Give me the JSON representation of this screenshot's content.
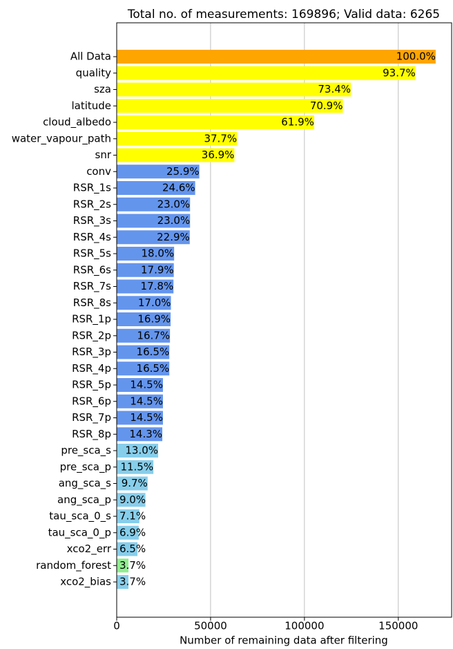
{
  "chart_data": {
    "type": "barh",
    "title": "Total no. of measurements: 169896; Valid data: 6265",
    "x_label": "Number of remaining data after filtering",
    "categories": [
      "All Data",
      "quality",
      "sza",
      "latitude",
      "cloud_albedo",
      "water_vapour_path",
      "snr",
      "conv",
      "RSR_1s",
      "RSR_2s",
      "RSR_3s",
      "RSR_4s",
      "RSR_5s",
      "RSR_6s",
      "RSR_7s",
      "RSR_8s",
      "RSR_1p",
      "RSR_2p",
      "RSR_3p",
      "RSR_4p",
      "RSR_5p",
      "RSR_6p",
      "RSR_7p",
      "RSR_8p",
      "pre_sca_s",
      "pre_sca_p",
      "ang_sca_s",
      "ang_sca_p",
      "tau_sca_0_s",
      "tau_sca_0_p",
      "xco2_err",
      "random_forest",
      "xco2_bias"
    ],
    "values": [
      169896,
      159193,
      124704,
      120456,
      105166,
      64051,
      62692,
      44003,
      41794,
      39076,
      39076,
      38906,
      30581,
      30411,
      30241,
      28882,
      28712,
      28373,
      28033,
      28033,
      24635,
      24635,
      24635,
      24295,
      22086,
      19538,
      16480,
      15291,
      12063,
      11723,
      11043,
      6286,
      6265
    ],
    "value_labels": [
      "100.0%",
      "93.7%",
      "73.4%",
      "70.9%",
      "61.9%",
      "37.7%",
      "36.9%",
      "25.9%",
      "24.6%",
      "23.0%",
      "23.0%",
      "22.9%",
      "18.0%",
      "17.9%",
      "17.8%",
      "17.0%",
      "16.9%",
      "16.7%",
      "16.5%",
      "16.5%",
      "14.5%",
      "14.5%",
      "14.5%",
      "14.3%",
      "13.0%",
      "11.5%",
      "9.7%",
      "9.0%",
      "7.1%",
      "6.9%",
      "6.5%",
      "3.7%",
      "3.7%"
    ],
    "colors": [
      "#ffa500",
      "#ffff00",
      "#ffff00",
      "#ffff00",
      "#ffff00",
      "#ffff00",
      "#ffff00",
      "#6495ed",
      "#6495ed",
      "#6495ed",
      "#6495ed",
      "#6495ed",
      "#6495ed",
      "#6495ed",
      "#6495ed",
      "#6495ed",
      "#6495ed",
      "#6495ed",
      "#6495ed",
      "#6495ed",
      "#6495ed",
      "#6495ed",
      "#6495ed",
      "#6495ed",
      "#87ceeb",
      "#87ceeb",
      "#87ceeb",
      "#87ceeb",
      "#87ceeb",
      "#87ceeb",
      "#87ceeb",
      "#90ee90",
      "#87ceeb"
    ],
    "xlim": [
      0,
      178391
    ],
    "xticks": [
      0,
      50000,
      100000,
      150000
    ],
    "grid": true
  }
}
